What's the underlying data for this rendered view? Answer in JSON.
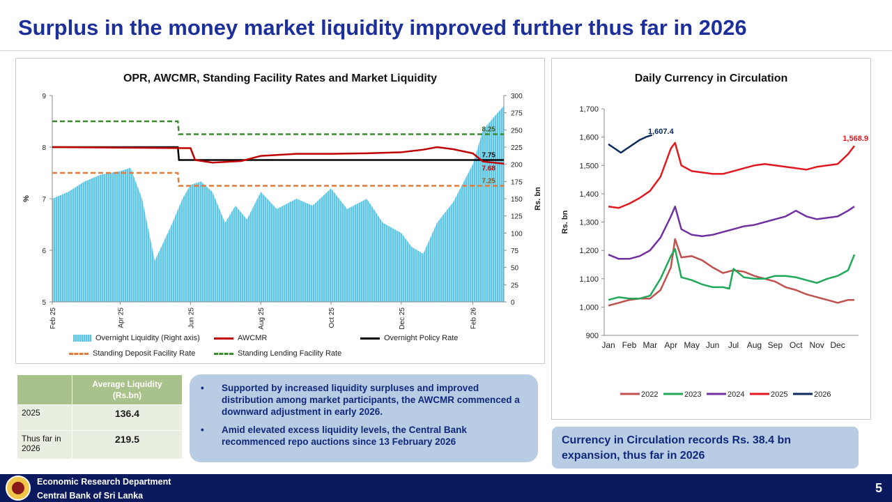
{
  "title": "Surplus in the money market liquidity improved further thus far in 2026",
  "colors": {
    "title": "#1d2f9a",
    "liquidity": "#5cc6e6",
    "awcmr": "#c00000",
    "opr": "#000000",
    "sdfr": "#e07b39",
    "slfr": "#3a8a2e",
    "y2022": "#c0504d",
    "y2023": "#1fa858",
    "y2024": "#7030a0",
    "y2025": "#e0181f",
    "y2026": "#0b2a5e"
  },
  "chart_data": [
    {
      "type": "line",
      "title": "OPR, AWCMR, Standing Facility Rates and Market Liquidity",
      "ylabel": "%",
      "y2label": "Rs. bn",
      "ylim": [
        5,
        9
      ],
      "y_ticks": [
        "5",
        "6",
        "7",
        "8",
        "9"
      ],
      "y2lim": [
        0,
        300
      ],
      "y2_ticks": [
        "0",
        "25",
        "50",
        "75",
        "100",
        "125",
        "150",
        "175",
        "200",
        "225",
        "250",
        "275",
        "300"
      ],
      "x_ticks": [
        "Feb 25",
        "Apr 25",
        "Jun 25",
        "Aug 25",
        "Oct 25",
        "Dec 25",
        "Feb 26"
      ],
      "annotations": [
        "8.25",
        "7.75",
        "7.68",
        "7.25"
      ],
      "legend": [
        "Overnight Liquidity (Right axis)",
        "AWCMR",
        "Overnight Policy Rate",
        "Standing Deposit Facility Rate",
        "Standing Lending Facility Rate"
      ],
      "series": [
        {
          "name": "Overnight Liquidity (Right axis)",
          "axis": "right",
          "type": "area",
          "x": [
            "2025-02-01",
            "2025-02-15",
            "2025-03-01",
            "2025-03-15",
            "2025-04-01",
            "2025-04-10",
            "2025-04-20",
            "2025-05-01",
            "2025-05-15",
            "2025-05-25",
            "2025-06-01",
            "2025-06-10",
            "2025-06-20",
            "2025-07-01",
            "2025-07-10",
            "2025-07-20",
            "2025-08-01",
            "2025-08-15",
            "2025-09-01",
            "2025-09-15",
            "2025-10-01",
            "2025-10-15",
            "2025-11-01",
            "2025-11-15",
            "2025-12-01",
            "2025-12-10",
            "2025-12-20",
            "2026-01-01",
            "2026-01-15",
            "2026-02-01",
            "2026-02-10",
            "2026-02-20",
            "2026-02-28"
          ],
          "values": [
            150,
            160,
            175,
            185,
            190,
            195,
            150,
            60,
            110,
            150,
            170,
            175,
            160,
            115,
            140,
            120,
            160,
            135,
            150,
            140,
            165,
            135,
            150,
            115,
            100,
            80,
            70,
            115,
            145,
            200,
            250,
            270,
            285
          ]
        },
        {
          "name": "AWCMR",
          "axis": "left",
          "x": [
            "2025-02-01",
            "2025-04-01",
            "2025-06-01",
            "2025-06-05",
            "2025-06-20",
            "2025-07-15",
            "2025-08-01",
            "2025-09-01",
            "2025-10-01",
            "2025-11-01",
            "2025-12-01",
            "2025-12-20",
            "2026-01-01",
            "2026-01-15",
            "2026-02-01",
            "2026-02-10",
            "2026-02-28"
          ],
          "values": [
            8.0,
            7.99,
            7.98,
            7.75,
            7.7,
            7.73,
            7.83,
            7.87,
            7.87,
            7.88,
            7.9,
            7.95,
            8.0,
            7.96,
            7.88,
            7.72,
            7.68
          ]
        },
        {
          "name": "Overnight Policy Rate",
          "axis": "left",
          "x": [
            "2025-02-01",
            "2025-05-21",
            "2025-05-22",
            "2026-02-28"
          ],
          "values": [
            8.0,
            8.0,
            7.75,
            7.75
          ]
        },
        {
          "name": "Standing Deposit Facility Rate",
          "axis": "left",
          "x": [
            "2025-02-01",
            "2025-05-21",
            "2025-05-22",
            "2026-02-28"
          ],
          "values": [
            7.5,
            7.5,
            7.25,
            7.25
          ]
        },
        {
          "name": "Standing Lending Facility Rate",
          "axis": "left",
          "x": [
            "2025-02-01",
            "2025-05-21",
            "2025-05-22",
            "2026-02-28"
          ],
          "values": [
            8.5,
            8.5,
            8.25,
            8.25
          ]
        }
      ]
    },
    {
      "type": "line",
      "title": "Daily Currency in Circulation",
      "ylabel": "Rs. bn",
      "ylim": [
        900,
        1700
      ],
      "y_ticks": [
        "900",
        "1,000",
        "1,100",
        "1,200",
        "1,300",
        "1,400",
        "1,500",
        "1,600",
        "1,700"
      ],
      "categories": [
        "Jan",
        "Feb",
        "Mar",
        "Apr",
        "May",
        "Jun",
        "Jul",
        "Aug",
        "Sep",
        "Oct",
        "Nov",
        "Dec"
      ],
      "annotations": [
        "1,607.4",
        "1,568.9"
      ],
      "series": [
        {
          "name": "2022",
          "x": [
            0,
            0.5,
            1,
            1.5,
            2,
            2.5,
            3,
            3.2,
            3.5,
            4,
            4.5,
            5,
            5.5,
            6,
            6.5,
            7,
            7.5,
            8,
            8.5,
            9,
            9.5,
            10,
            10.5,
            11,
            11.5,
            11.8
          ],
          "values": [
            1005,
            1015,
            1025,
            1030,
            1030,
            1060,
            1140,
            1240,
            1175,
            1180,
            1165,
            1140,
            1120,
            1130,
            1125,
            1110,
            1100,
            1090,
            1070,
            1060,
            1045,
            1035,
            1025,
            1015,
            1025,
            1025
          ]
        },
        {
          "name": "2023",
          "x": [
            0,
            0.5,
            1,
            1.5,
            2,
            2.5,
            3,
            3.2,
            3.5,
            4,
            4.5,
            5,
            5.5,
            5.8,
            6,
            6.5,
            7,
            7.5,
            8,
            8.5,
            9,
            9.5,
            10,
            10.5,
            11,
            11.5,
            11.8
          ],
          "values": [
            1025,
            1035,
            1030,
            1030,
            1040,
            1100,
            1180,
            1205,
            1105,
            1095,
            1080,
            1070,
            1070,
            1065,
            1135,
            1105,
            1100,
            1100,
            1110,
            1110,
            1105,
            1095,
            1085,
            1100,
            1110,
            1130,
            1185
          ]
        },
        {
          "name": "2024",
          "x": [
            0,
            0.5,
            1,
            1.5,
            2,
            2.5,
            3,
            3.2,
            3.5,
            4,
            4.5,
            5,
            5.5,
            6,
            6.5,
            7,
            7.5,
            8,
            8.5,
            9,
            9.5,
            10,
            10.5,
            11,
            11.5,
            11.8
          ],
          "values": [
            1185,
            1170,
            1170,
            1180,
            1200,
            1245,
            1320,
            1355,
            1275,
            1255,
            1250,
            1255,
            1265,
            1275,
            1285,
            1290,
            1300,
            1310,
            1320,
            1340,
            1320,
            1310,
            1315,
            1320,
            1340,
            1355
          ]
        },
        {
          "name": "2025",
          "x": [
            0,
            0.5,
            1,
            1.5,
            2,
            2.5,
            3,
            3.2,
            3.5,
            4,
            4.5,
            5,
            5.5,
            6,
            6.5,
            7,
            7.5,
            8,
            8.5,
            9,
            9.5,
            10,
            10.5,
            11,
            11.5,
            11.8
          ],
          "values": [
            1355,
            1350,
            1365,
            1385,
            1410,
            1460,
            1560,
            1580,
            1500,
            1480,
            1475,
            1470,
            1470,
            1480,
            1490,
            1500,
            1505,
            1500,
            1495,
            1490,
            1485,
            1495,
            1500,
            1505,
            1540,
            1568.9
          ]
        },
        {
          "name": "2026",
          "x": [
            0,
            0.3,
            0.6,
            0.9,
            1.2,
            1.5,
            1.8,
            2.1
          ],
          "values": [
            1575,
            1560,
            1545,
            1560,
            1575,
            1590,
            1600,
            1607.4
          ]
        }
      ]
    }
  ],
  "table": {
    "header": "Average Liquidity (Rs.bn)",
    "rows": [
      {
        "label": "2025",
        "value": "136.4"
      },
      {
        "label": "Thus far in 2026",
        "value": "219.5"
      }
    ]
  },
  "bullets": [
    "Supported by increased liquidity surpluses and improved distribution among market participants, the AWCMR commenced a downward adjustment in early 2026.",
    "Amid elevated excess liquidity levels, the Central Bank recommenced repo auctions since 13 February 2026"
  ],
  "bullet_glyph": "•",
  "cic_box": "Currency in Circulation records Rs. 38.4 bn expansion, thus far in 2026",
  "footer": {
    "line1": "Economic Research Department",
    "line2": "Central Bank of Sri Lanka",
    "page": "5"
  }
}
